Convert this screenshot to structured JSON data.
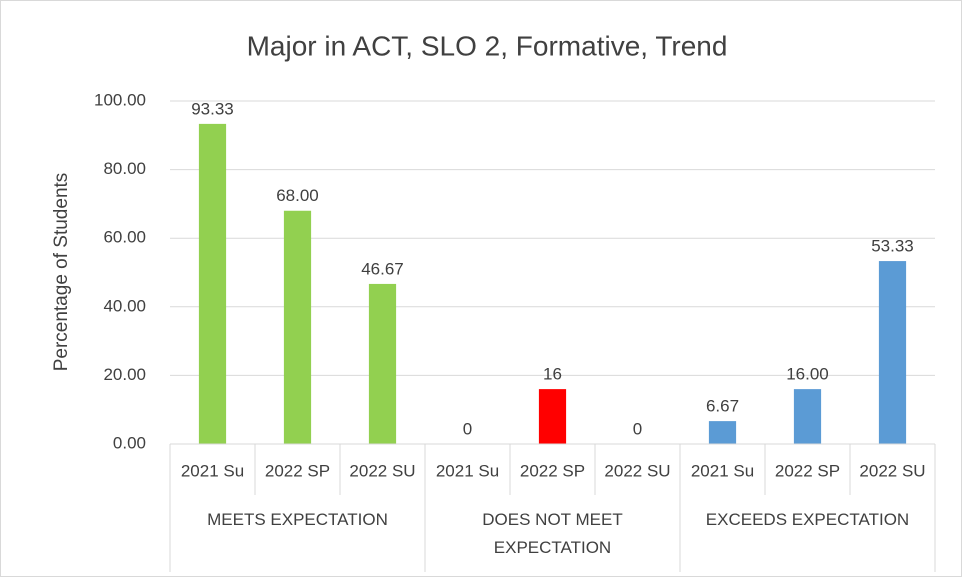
{
  "chart_data": {
    "type": "bar",
    "title": "Major in ACT, SLO 2, Formative, Trend",
    "y_label": "Percentage of Students",
    "ylim": [
      0,
      100
    ],
    "yticks": [
      {
        "value": 0,
        "label": "0.00"
      },
      {
        "value": 20,
        "label": "20.00"
      },
      {
        "value": 40,
        "label": "40.00"
      },
      {
        "value": 60,
        "label": "60.00"
      },
      {
        "value": 80,
        "label": "80.00"
      },
      {
        "value": 100,
        "label": "100.00"
      }
    ],
    "grid": true,
    "groups": [
      {
        "label": "MEETS EXPECTATION",
        "color": "#92d050",
        "categories": [
          "2021 Su",
          "2022 SP",
          "2022 SU"
        ],
        "values": [
          93.33,
          68,
          46.67
        ],
        "value_labels": [
          "93.33",
          "68.00",
          "46.67"
        ]
      },
      {
        "label": "DOES NOT MEET EXPECTATION",
        "color": "#ff0000",
        "categories": [
          "2021 Su",
          "2022 SP",
          "2022 SU"
        ],
        "values": [
          0,
          16,
          0
        ],
        "value_labels": [
          "0",
          "16",
          "0"
        ]
      },
      {
        "label": "EXCEEDS EXPECTATION",
        "color": "#5b9bd5",
        "categories": [
          "2021 Su",
          "2022 SP",
          "2022 SU"
        ],
        "values": [
          6.67,
          16,
          53.33
        ],
        "value_labels": [
          "6.67",
          "16.00",
          "53.33"
        ]
      }
    ]
  }
}
